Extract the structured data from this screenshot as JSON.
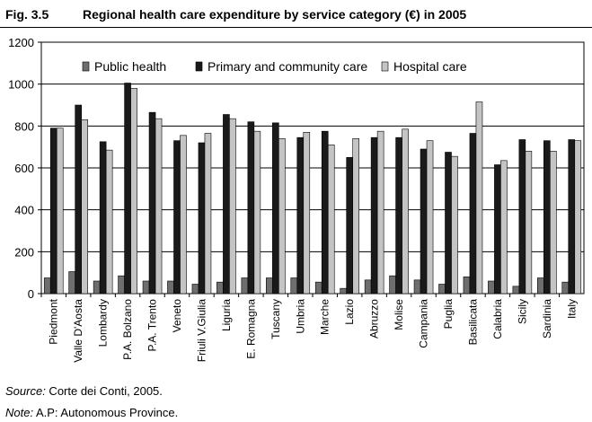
{
  "header": {
    "fig_label": "Fig. 3.5",
    "title": "Regional health care expenditure by service category (€) in 2005"
  },
  "footer": {
    "source_label": "Source:",
    "source_text": " Corte dei Conti, 2005.",
    "note_label": "Note:",
    "note_text": " A.P: Autonomous Province."
  },
  "colors": {
    "public_health": "#6e6e6e",
    "primary_care": "#1a1a1a",
    "hospital_care": "#c4c4c4"
  },
  "chart_data": {
    "type": "bar",
    "title": "Regional health care expenditure by service category (€) in 2005",
    "xlabel": "",
    "ylabel": "",
    "ylim": [
      0,
      1200
    ],
    "yticks": [
      0,
      200,
      400,
      600,
      800,
      1000,
      1200
    ],
    "legend_position": "top",
    "grid": true,
    "categories": [
      "Piedmont",
      "Valle D'Aosta",
      "Lombardy",
      "P.A. Bolzano",
      "P.A. Trento",
      "Veneto",
      "Friuli V.Giulia",
      "Liguria",
      "E. Romagna",
      "Tuscany",
      "Umbria",
      "Marche",
      "Lazio",
      "Abruzzo",
      "Molise",
      "Campania",
      "Puglia",
      "Basilicata",
      "Calabria",
      "Sicily",
      "Sardinia",
      "Italy"
    ],
    "series": [
      {
        "name": "Public health",
        "values": [
          75,
          105,
          60,
          85,
          60,
          60,
          45,
          55,
          75,
          75,
          75,
          55,
          25,
          65,
          85,
          65,
          45,
          80,
          60,
          35,
          75,
          55
        ]
      },
      {
        "name": "Primary and community care",
        "values": [
          790,
          900,
          725,
          1005,
          865,
          730,
          720,
          855,
          820,
          815,
          745,
          775,
          650,
          745,
          745,
          690,
          675,
          765,
          615,
          735,
          730,
          735
        ]
      },
      {
        "name": "Hospital care",
        "values": [
          790,
          830,
          685,
          980,
          835,
          755,
          765,
          835,
          775,
          740,
          770,
          710,
          740,
          775,
          785,
          730,
          655,
          915,
          635,
          680,
          680,
          730
        ]
      }
    ]
  }
}
